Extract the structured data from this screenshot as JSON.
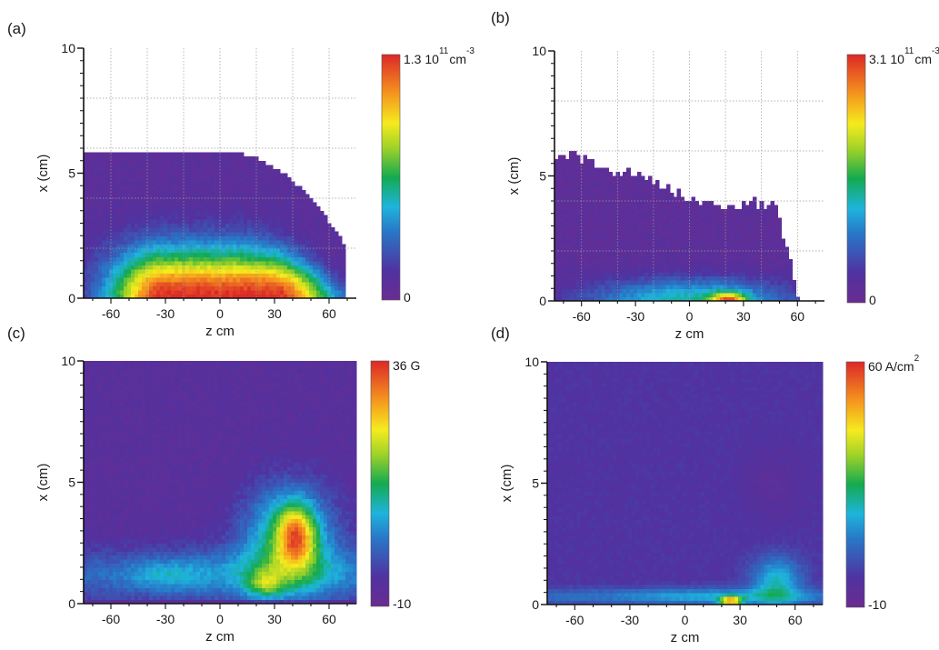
{
  "chart_data": [
    {
      "panel_label": "(a)",
      "type": "heatmap",
      "xlabel": "z cm",
      "ylabel": "x (cm)",
      "xlim": [
        -75,
        75
      ],
      "ylim": [
        0,
        10
      ],
      "xticks": [
        "-60",
        "-30",
        "0",
        "30",
        "60"
      ],
      "yticks": [
        "0",
        "5",
        "10"
      ],
      "grid": true,
      "colorbar": {
        "max_label": "1.3 10",
        "max_exp": "11",
        "unit": "cm",
        "unit_exp": "-3",
        "min_label": "0",
        "min": 0,
        "max": 1.3
      },
      "field": {
        "kind": "density_plateau",
        "z_left": -75,
        "z_right": 68,
        "top": 5.8,
        "core_half_width": 40,
        "core_height": 1.2,
        "peak": 1.0
      }
    },
    {
      "panel_label": "(b)",
      "type": "heatmap",
      "xlabel": "z cm",
      "ylabel": "x (cm)",
      "xlim": [
        -75,
        75
      ],
      "ylim": [
        0,
        10
      ],
      "xticks": [
        "-60",
        "-30",
        "0",
        "30",
        "60"
      ],
      "yticks": [
        "0",
        "5",
        "10"
      ],
      "grid": true,
      "colorbar": {
        "max_label": "3.1 10",
        "max_exp": "11",
        "unit": "cm",
        "unit_exp": "-3",
        "min_label": "0",
        "min": 0,
        "max": 3.1
      },
      "field": {
        "kind": "density_layer",
        "z_left": -75,
        "z_right": 65,
        "layer_height": 1.0,
        "hotspot_z": 22,
        "hotspot_x": 0.15,
        "peak": 1.0
      }
    },
    {
      "panel_label": "(c)",
      "type": "heatmap",
      "xlabel": "z cm",
      "ylabel": "x (cm)",
      "xlim": [
        -75,
        75
      ],
      "ylim": [
        0,
        10
      ],
      "xticks": [
        "-60",
        "-30",
        "0",
        "30",
        "60"
      ],
      "yticks": [
        "0",
        "5",
        "10"
      ],
      "grid": false,
      "colorbar": {
        "max_label": "36 G",
        "max_exp": "",
        "unit": "",
        "unit_exp": "",
        "min_label": "-10",
        "min": -10,
        "max": 36
      },
      "field": {
        "kind": "magnetic_blob",
        "peak_z": 42,
        "peak_x": 2.8,
        "peak": 36,
        "floor": -10
      }
    },
    {
      "panel_label": "(d)",
      "type": "heatmap",
      "xlabel": "z cm",
      "ylabel": "x (cm)",
      "xlim": [
        -75,
        75
      ],
      "ylim": [
        0,
        10
      ],
      "xticks": [
        "-60",
        "-30",
        "0",
        "30",
        "60"
      ],
      "yticks": [
        "0",
        "5",
        "10"
      ],
      "grid": false,
      "colorbar": {
        "max_label": "60 A/cm",
        "max_exp": "2",
        "unit": "",
        "unit_exp": "",
        "min_label": "-10",
        "min": -10,
        "max": 60
      },
      "field": {
        "kind": "current_sheet",
        "hotspot_z": 25,
        "hotspot_x": 0.15,
        "peak": 60,
        "floor": -10
      }
    }
  ]
}
